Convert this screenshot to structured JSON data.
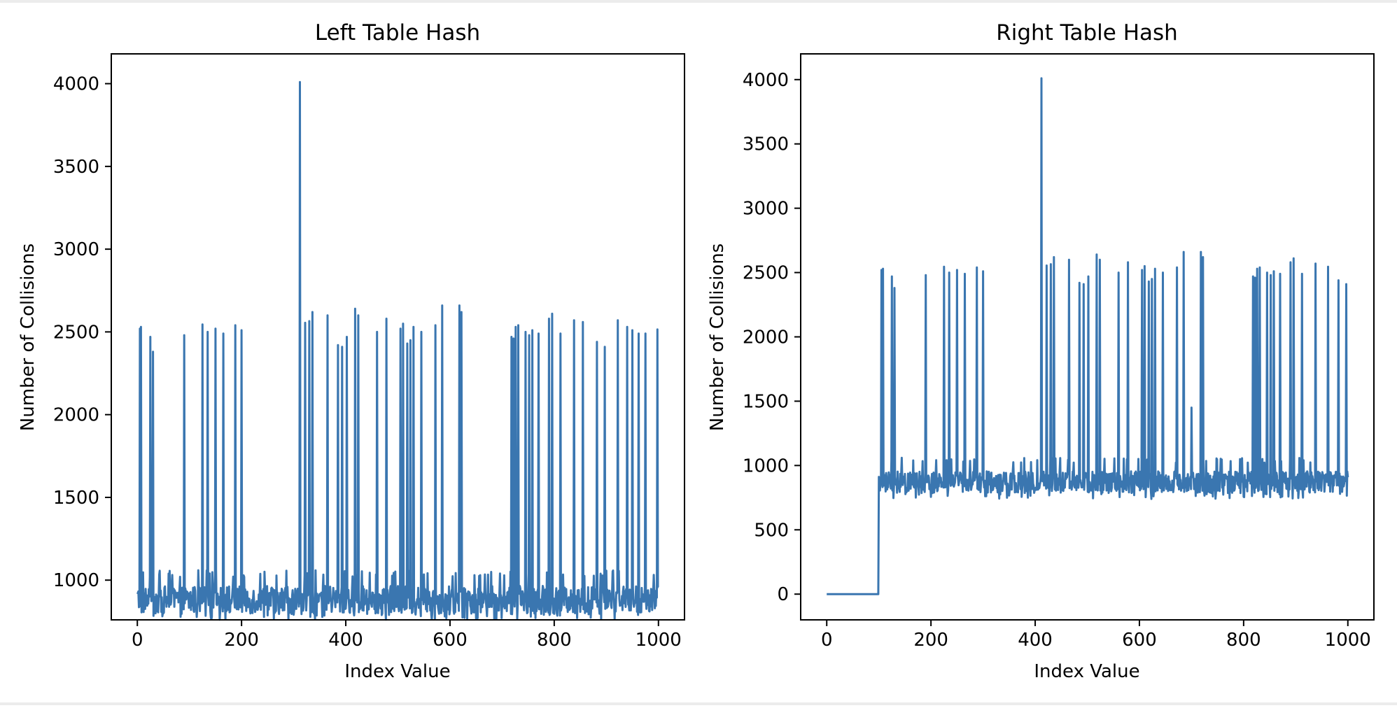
{
  "figure": {
    "line_color": "#3a76b0",
    "background": "#ffffff"
  },
  "chart_data": [
    {
      "type": "line",
      "title": "Left Table Hash",
      "xlabel": "Index Value",
      "ylabel": "Number of Collisions",
      "xlim": [
        -50,
        1050
      ],
      "ylim": [
        760,
        4180
      ],
      "xticks": [
        0,
        200,
        400,
        600,
        800,
        1000
      ],
      "yticks": [
        1000,
        1500,
        2000,
        2500,
        3000,
        3500,
        4000
      ],
      "grid": false,
      "legend": "none",
      "series": [
        {
          "baseline_range": [
            760,
            1060
          ],
          "x_range": [
            0,
            1000
          ],
          "spikes": [
            {
              "x": 5,
              "y": 2520
            },
            {
              "x": 7,
              "y": 2530
            },
            {
              "x": 25,
              "y": 2470
            },
            {
              "x": 30,
              "y": 2380
            },
            {
              "x": 90,
              "y": 2480
            },
            {
              "x": 125,
              "y": 2545
            },
            {
              "x": 135,
              "y": 2500
            },
            {
              "x": 150,
              "y": 2520
            },
            {
              "x": 165,
              "y": 2490
            },
            {
              "x": 188,
              "y": 2540
            },
            {
              "x": 200,
              "y": 2510
            },
            {
              "x": 312,
              "y": 4010
            },
            {
              "x": 322,
              "y": 2555
            },
            {
              "x": 330,
              "y": 2565
            },
            {
              "x": 336,
              "y": 2620
            },
            {
              "x": 365,
              "y": 2600
            },
            {
              "x": 385,
              "y": 2420
            },
            {
              "x": 393,
              "y": 2410
            },
            {
              "x": 402,
              "y": 2470
            },
            {
              "x": 418,
              "y": 2640
            },
            {
              "x": 424,
              "y": 2600
            },
            {
              "x": 460,
              "y": 2500
            },
            {
              "x": 478,
              "y": 2580
            },
            {
              "x": 505,
              "y": 2520
            },
            {
              "x": 510,
              "y": 2550
            },
            {
              "x": 518,
              "y": 2430
            },
            {
              "x": 524,
              "y": 2450
            },
            {
              "x": 530,
              "y": 2530
            },
            {
              "x": 545,
              "y": 2500
            },
            {
              "x": 572,
              "y": 2540
            },
            {
              "x": 585,
              "y": 2660
            },
            {
              "x": 618,
              "y": 2660
            },
            {
              "x": 622,
              "y": 2620
            },
            {
              "x": 718,
              "y": 2470
            },
            {
              "x": 722,
              "y": 2460
            },
            {
              "x": 726,
              "y": 2530
            },
            {
              "x": 731,
              "y": 2540
            },
            {
              "x": 745,
              "y": 2500
            },
            {
              "x": 752,
              "y": 2480
            },
            {
              "x": 758,
              "y": 2510
            },
            {
              "x": 770,
              "y": 2490
            },
            {
              "x": 790,
              "y": 2580
            },
            {
              "x": 796,
              "y": 2610
            },
            {
              "x": 812,
              "y": 2490
            },
            {
              "x": 838,
              "y": 2570
            },
            {
              "x": 855,
              "y": 2560
            },
            {
              "x": 882,
              "y": 2440
            },
            {
              "x": 897,
              "y": 2410
            },
            {
              "x": 922,
              "y": 2570
            },
            {
              "x": 940,
              "y": 2530
            },
            {
              "x": 950,
              "y": 2510
            },
            {
              "x": 962,
              "y": 2490
            },
            {
              "x": 975,
              "y": 2490
            },
            {
              "x": 998,
              "y": 2515
            }
          ]
        }
      ]
    },
    {
      "type": "line",
      "title": "Right Table Hash",
      "xlabel": "Index Value",
      "ylabel": "Number of Collisions",
      "xlim": [
        -50,
        1050
      ],
      "ylim": [
        -200,
        4200
      ],
      "xticks": [
        0,
        200,
        400,
        600,
        800,
        1000
      ],
      "yticks": [
        0,
        500,
        1000,
        1500,
        2000,
        2500,
        3000,
        3500,
        4000
      ],
      "grid": false,
      "legend": "none",
      "series": [
        {
          "zero_until": 100,
          "baseline_range": [
            740,
            1060
          ],
          "x_range": [
            0,
            1000
          ],
          "spikes": [
            {
              "x": 105,
              "y": 2520
            },
            {
              "x": 108,
              "y": 2530
            },
            {
              "x": 125,
              "y": 2470
            },
            {
              "x": 130,
              "y": 2380
            },
            {
              "x": 190,
              "y": 2480
            },
            {
              "x": 225,
              "y": 2545
            },
            {
              "x": 235,
              "y": 2500
            },
            {
              "x": 250,
              "y": 2520
            },
            {
              "x": 265,
              "y": 2490
            },
            {
              "x": 288,
              "y": 2540
            },
            {
              "x": 300,
              "y": 2510
            },
            {
              "x": 412,
              "y": 4010
            },
            {
              "x": 422,
              "y": 2555
            },
            {
              "x": 430,
              "y": 2565
            },
            {
              "x": 436,
              "y": 2620
            },
            {
              "x": 465,
              "y": 2600
            },
            {
              "x": 485,
              "y": 2420
            },
            {
              "x": 493,
              "y": 2410
            },
            {
              "x": 502,
              "y": 2470
            },
            {
              "x": 518,
              "y": 2640
            },
            {
              "x": 524,
              "y": 2600
            },
            {
              "x": 560,
              "y": 2500
            },
            {
              "x": 578,
              "y": 2580
            },
            {
              "x": 605,
              "y": 2520
            },
            {
              "x": 610,
              "y": 2550
            },
            {
              "x": 618,
              "y": 2430
            },
            {
              "x": 624,
              "y": 2450
            },
            {
              "x": 630,
              "y": 2530
            },
            {
              "x": 645,
              "y": 2500
            },
            {
              "x": 672,
              "y": 2540
            },
            {
              "x": 685,
              "y": 2660
            },
            {
              "x": 700,
              "y": 1450
            },
            {
              "x": 718,
              "y": 2660
            },
            {
              "x": 722,
              "y": 2620
            },
            {
              "x": 818,
              "y": 2470
            },
            {
              "x": 822,
              "y": 2460
            },
            {
              "x": 826,
              "y": 2530
            },
            {
              "x": 831,
              "y": 2540
            },
            {
              "x": 845,
              "y": 2500
            },
            {
              "x": 852,
              "y": 2480
            },
            {
              "x": 858,
              "y": 2510
            },
            {
              "x": 870,
              "y": 2490
            },
            {
              "x": 890,
              "y": 2580
            },
            {
              "x": 896,
              "y": 2610
            },
            {
              "x": 912,
              "y": 2490
            },
            {
              "x": 938,
              "y": 2570
            },
            {
              "x": 962,
              "y": 2545
            },
            {
              "x": 982,
              "y": 2440
            },
            {
              "x": 997,
              "y": 2410
            }
          ]
        }
      ]
    }
  ]
}
